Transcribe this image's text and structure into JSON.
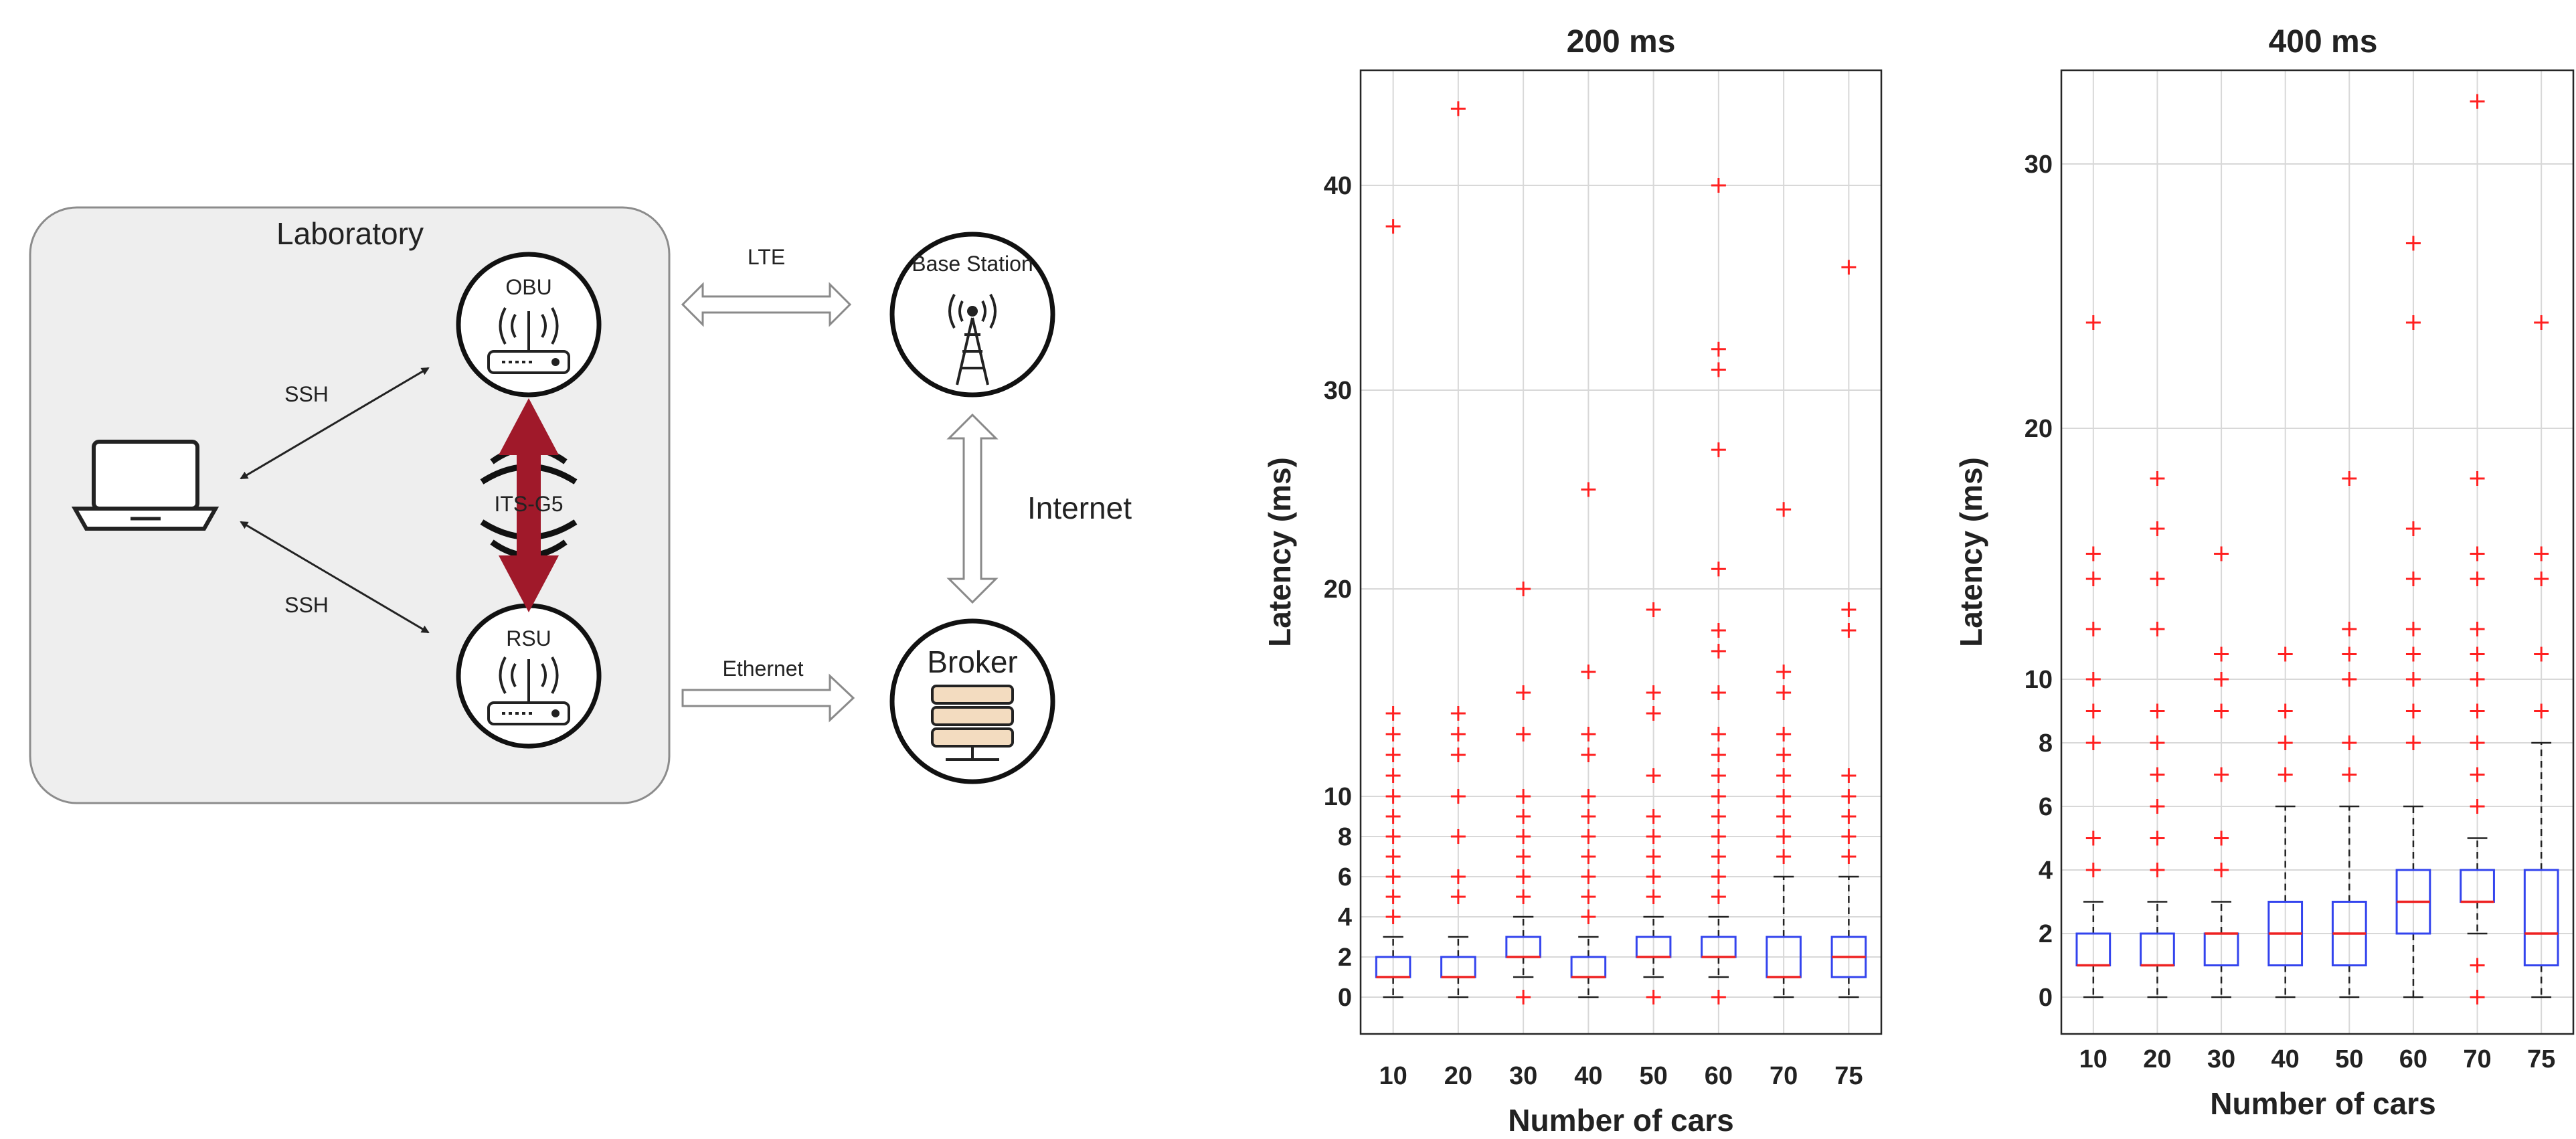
{
  "diagram": {
    "lab_label": "Laboratory",
    "obu_label": "OBU",
    "rsu_label": "RSU",
    "its_label": "ITS-G5",
    "ssh_top_label": "SSH",
    "ssh_bottom_label": "SSH",
    "lte_label": "LTE",
    "ethernet_label": "Ethernet",
    "internet_label": "Internet",
    "base_station_label": "Base Station",
    "broker_label": "Broker",
    "colors": {
      "link_arrow": "#a0192a",
      "lab_fill": "#eeeeee",
      "broker_icon": "#f3dcc0"
    }
  },
  "chart_data": [
    {
      "type": "boxplot",
      "title": "200 ms",
      "xlabel": "Number of cars",
      "ylabel": "Latency (ms)",
      "ylim": [
        -2.2,
        46
      ],
      "y_scale": "nonlinear (compressed below 10 ms)",
      "grid": true,
      "categories": [
        "10",
        "20",
        "30",
        "40",
        "50",
        "60",
        "70",
        "75"
      ],
      "yticks": [
        0,
        2,
        4,
        6,
        8,
        10,
        20,
        30,
        40
      ],
      "boxes": [
        {
          "q1": 1,
          "median": 1,
          "q3": 2,
          "whisker_low": 0,
          "whisker_high": 3,
          "outliers": [
            4,
            5,
            6,
            7,
            8,
            9,
            10,
            11,
            12,
            13,
            14,
            38
          ]
        },
        {
          "q1": 1,
          "median": 1,
          "q3": 2,
          "whisker_low": 0,
          "whisker_high": 3,
          "outliers": [
            5,
            6,
            8,
            10,
            12,
            13,
            14,
            44
          ]
        },
        {
          "q1": 2,
          "median": 2,
          "q3": 3,
          "whisker_low": 1,
          "whisker_high": 4,
          "outliers": [
            0,
            5,
            6,
            7,
            8,
            9,
            10,
            13,
            15,
            20
          ]
        },
        {
          "q1": 1,
          "median": 1,
          "q3": 2,
          "whisker_low": 0,
          "whisker_high": 3,
          "outliers": [
            4,
            5,
            6,
            7,
            8,
            9,
            10,
            12,
            13,
            16,
            25
          ]
        },
        {
          "q1": 2,
          "median": 2,
          "q3": 3,
          "whisker_low": 1,
          "whisker_high": 4,
          "outliers": [
            0,
            5,
            6,
            7,
            8,
            9,
            11,
            14,
            15,
            19
          ]
        },
        {
          "q1": 2,
          "median": 2,
          "q3": 3,
          "whisker_low": 1,
          "whisker_high": 4,
          "outliers": [
            0,
            5,
            6,
            7,
            8,
            9,
            10,
            11,
            12,
            13,
            15,
            17,
            18,
            21,
            27,
            31,
            32,
            40
          ]
        },
        {
          "q1": 1,
          "median": 1,
          "q3": 3,
          "whisker_low": 0,
          "whisker_high": 6,
          "outliers": [
            7,
            8,
            9,
            10,
            11,
            12,
            13,
            15,
            16,
            24
          ]
        },
        {
          "q1": 1,
          "median": 2,
          "q3": 3,
          "whisker_low": 0,
          "whisker_high": 6,
          "outliers": [
            7,
            8,
            9,
            10,
            11,
            18,
            19,
            36
          ]
        }
      ]
    },
    {
      "type": "boxplot",
      "title": "400 ms",
      "xlabel": "Number of cars",
      "ylabel": "Latency (ms)",
      "ylim": [
        -1.5,
        33
      ],
      "y_scale": "nonlinear (compressed below 10 ms)",
      "grid": true,
      "categories": [
        "10",
        "20",
        "30",
        "40",
        "50",
        "60",
        "70",
        "75"
      ],
      "yticks": [
        0,
        2,
        4,
        6,
        8,
        10,
        20,
        30
      ],
      "boxes": [
        {
          "q1": 1,
          "median": 1,
          "q3": 2,
          "whisker_low": 0,
          "whisker_high": 3,
          "outliers": [
            4,
            5,
            8,
            9,
            10,
            12,
            14,
            15,
            24
          ]
        },
        {
          "q1": 1,
          "median": 1,
          "q3": 2,
          "whisker_low": 0,
          "whisker_high": 3,
          "outliers": [
            4,
            5,
            6,
            7,
            8,
            9,
            12,
            14,
            16,
            18
          ]
        },
        {
          "q1": 1,
          "median": 2,
          "q3": 2,
          "whisker_low": 0,
          "whisker_high": 3,
          "outliers": [
            4,
            5,
            7,
            9,
            10,
            11,
            15
          ]
        },
        {
          "q1": 1,
          "median": 2,
          "q3": 3,
          "whisker_low": 0,
          "whisker_high": 6,
          "outliers": [
            7,
            8,
            9,
            11
          ]
        },
        {
          "q1": 1,
          "median": 2,
          "q3": 3,
          "whisker_low": 0,
          "whisker_high": 6,
          "outliers": [
            7,
            8,
            10,
            11,
            12,
            18
          ]
        },
        {
          "q1": 2,
          "median": 3,
          "q3": 4,
          "whisker_low": 0,
          "whisker_high": 6,
          "outliers": [
            8,
            9,
            10,
            11,
            12,
            14,
            16,
            24,
            27
          ]
        },
        {
          "q1": 3,
          "median": 3,
          "q3": 4,
          "whisker_low": 2,
          "whisker_high": 5,
          "outliers": [
            0,
            1,
            6,
            7,
            8,
            9,
            10,
            11,
            12,
            14,
            15,
            18,
            32
          ]
        },
        {
          "q1": 1,
          "median": 2,
          "q3": 4,
          "whisker_low": 0,
          "whisker_high": 8,
          "outliers": [
            9,
            11,
            14,
            15,
            24
          ]
        }
      ]
    }
  ]
}
